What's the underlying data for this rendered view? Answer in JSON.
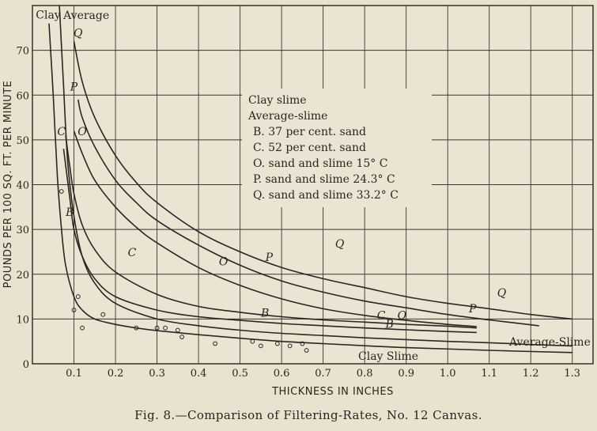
{
  "chart_data": {
    "type": "line",
    "xlabel": "THICKNESS IN INCHES",
    "ylabel": "POUNDS PER 100 SQ. FT. PER MINUTE",
    "caption": "Fig. 8.—Comparison of Filtering-Rates, No. 12 Canvas.",
    "xlim": [
      0,
      1.35
    ],
    "ylim": [
      0,
      80
    ],
    "xticks": [
      "0.1",
      "0.2",
      "0.3",
      "0.4",
      "0.5",
      "0.6",
      "0.7",
      "0.8",
      "0.9",
      "1.0",
      "1.1",
      "1.2",
      "1.3"
    ],
    "yticks": [
      "0",
      "10",
      "20",
      "30",
      "40",
      "50",
      "60",
      "70"
    ],
    "grid": true,
    "legend_lines": [
      "Clay slime",
      "Average-slime",
      "B. 37 per cent. sand",
      "C. 52 per cent. sand",
      "O. sand and slime 15° C",
      "P. sand and slime 24.3° C",
      "Q. sand and slime 33.2° C"
    ],
    "series": [
      {
        "name": "Clay",
        "end_label": "Clay Slime",
        "x": [
          0.04,
          0.05,
          0.06,
          0.07,
          0.08,
          0.1,
          0.12,
          0.15,
          0.2,
          0.25,
          0.3,
          0.4,
          0.5,
          0.6,
          0.7,
          0.9,
          1.1,
          1.3
        ],
        "y": [
          76,
          60,
          42,
          30,
          22,
          15,
          12,
          10,
          8.8,
          8,
          7.4,
          6.5,
          5.7,
          5,
          4.5,
          3.6,
          3,
          2.5
        ]
      },
      {
        "name": "Average",
        "end_label": "Average-Slime",
        "x": [
          0.065,
          0.075,
          0.085,
          0.1,
          0.12,
          0.15,
          0.2,
          0.3,
          0.4,
          0.5,
          0.6,
          0.7,
          0.8,
          0.9,
          1.0,
          1.1,
          1.2,
          1.3
        ],
        "y": [
          80,
          62,
          45,
          33,
          24,
          18,
          13.5,
          10,
          8.5,
          7.5,
          6.8,
          6.3,
          5.8,
          5.4,
          5,
          4.7,
          4.3,
          4
        ]
      },
      {
        "name": "B",
        "label_points": [
          {
            "x": 0.09,
            "y": 33
          },
          {
            "x": 0.56,
            "y": 10.5
          },
          {
            "x": 0.86,
            "y": 8
          }
        ],
        "x": [
          0.075,
          0.09,
          0.1,
          0.12,
          0.15,
          0.2,
          0.3,
          0.4,
          0.5,
          0.6,
          0.7,
          0.8,
          0.9,
          1.0,
          1.07
        ],
        "y": [
          48,
          37,
          30,
          24,
          19,
          15,
          12,
          10.5,
          9.7,
          9,
          8.5,
          8,
          7.6,
          7.2,
          7
        ]
      },
      {
        "name": "C",
        "label_points": [
          {
            "x": 0.07,
            "y": 51
          },
          {
            "x": 0.24,
            "y": 24
          },
          {
            "x": 0.84,
            "y": 10
          }
        ],
        "x": [
          0.08,
          0.09,
          0.1,
          0.12,
          0.15,
          0.2,
          0.3,
          0.4,
          0.5,
          0.6,
          0.7,
          0.8,
          0.9,
          1.0,
          1.07
        ],
        "y": [
          51,
          44,
          38,
          31,
          25.5,
          20.5,
          15.5,
          12.8,
          11.5,
          10.5,
          9.8,
          9.3,
          8.8,
          8.4,
          8
        ]
      },
      {
        "name": "O",
        "label_points": [
          {
            "x": 0.12,
            "y": 51
          },
          {
            "x": 0.46,
            "y": 22
          },
          {
            "x": 0.89,
            "y": 10
          }
        ],
        "x": [
          0.1,
          0.12,
          0.15,
          0.2,
          0.25,
          0.3,
          0.4,
          0.5,
          0.6,
          0.7,
          0.8,
          0.9,
          1.0,
          1.07
        ],
        "y": [
          52,
          47,
          41,
          35,
          30.5,
          27,
          21.5,
          17.5,
          14.5,
          12.3,
          10.8,
          9.7,
          8.8,
          8.3
        ]
      },
      {
        "name": "P",
        "label_points": [
          {
            "x": 0.1,
            "y": 61
          },
          {
            "x": 0.57,
            "y": 23
          },
          {
            "x": 1.06,
            "y": 11.5
          }
        ],
        "x": [
          0.11,
          0.12,
          0.15,
          0.2,
          0.25,
          0.3,
          0.4,
          0.5,
          0.6,
          0.7,
          0.8,
          0.9,
          1.0,
          1.1,
          1.22
        ],
        "y": [
          59,
          55,
          48.5,
          41,
          36,
          32,
          26.5,
          22,
          18.5,
          16,
          14,
          12.5,
          11,
          9.8,
          8.5
        ]
      },
      {
        "name": "Q",
        "label_points": [
          {
            "x": 0.11,
            "y": 73
          },
          {
            "x": 0.74,
            "y": 26
          },
          {
            "x": 1.13,
            "y": 15
          }
        ],
        "x": [
          0.1,
          0.12,
          0.15,
          0.2,
          0.25,
          0.3,
          0.4,
          0.5,
          0.6,
          0.7,
          0.8,
          0.9,
          1.0,
          1.1,
          1.2,
          1.3
        ],
        "y": [
          72,
          63,
          55,
          46.5,
          40.5,
          36,
          29.5,
          25,
          21.5,
          19,
          17,
          15,
          13.5,
          12.3,
          11,
          10
        ]
      }
    ],
    "points": {
      "x": [
        0.07,
        0.1,
        0.11,
        0.12,
        0.17,
        0.25,
        0.3,
        0.32,
        0.35,
        0.36,
        0.44,
        0.53,
        0.55,
        0.59,
        0.62,
        0.65,
        0.66
      ],
      "y": [
        38.5,
        12,
        15,
        8,
        11,
        8,
        8,
        8,
        7.5,
        6,
        4.5,
        5,
        4,
        4.5,
        4,
        4.5,
        3
      ]
    }
  }
}
